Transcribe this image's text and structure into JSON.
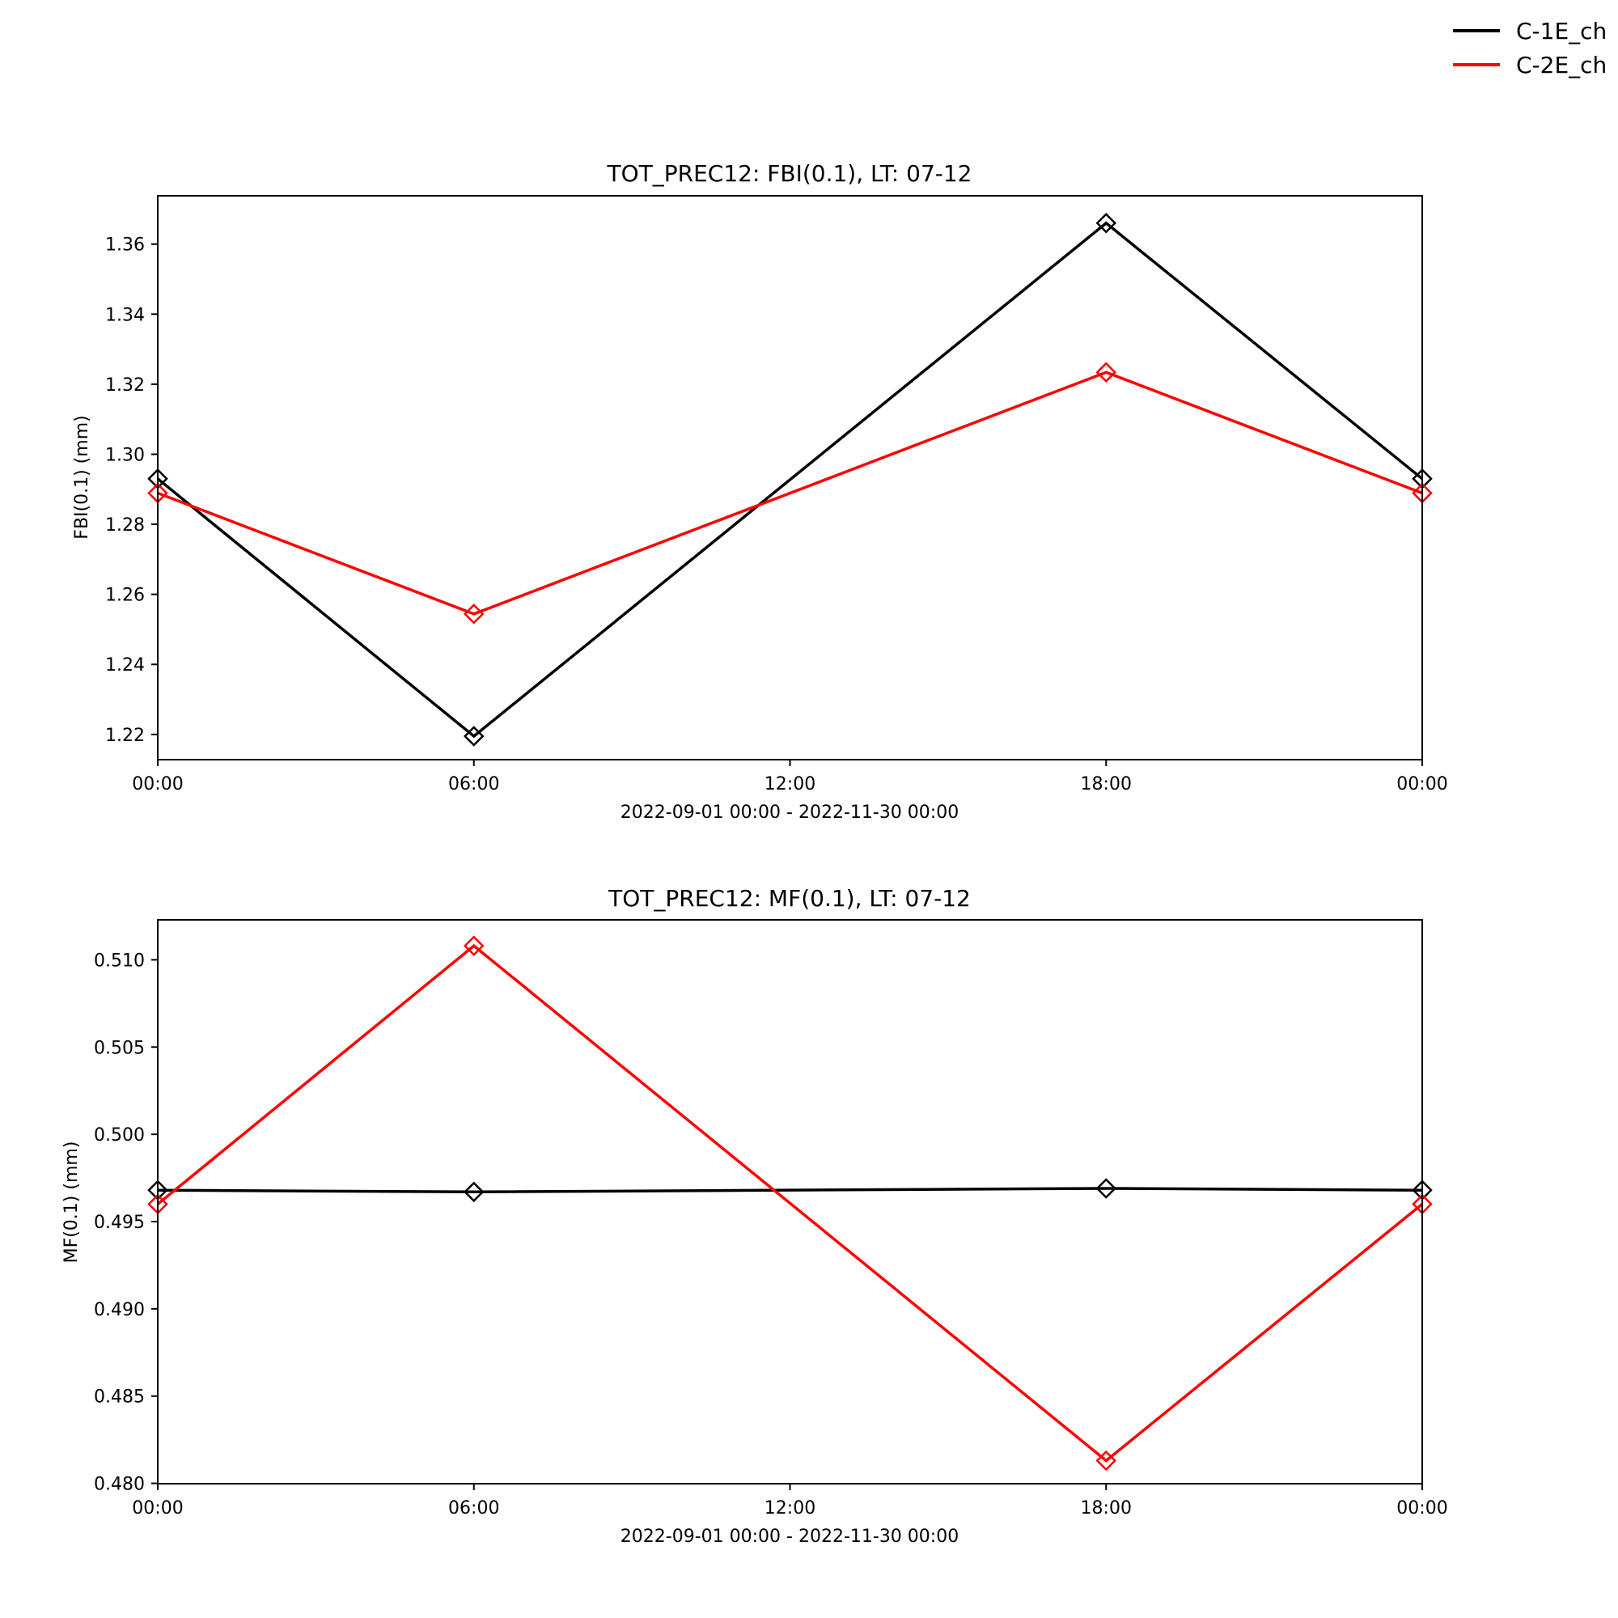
{
  "legend": {
    "placement": "top-right",
    "entries": [
      {
        "label": "C-1E_ch",
        "color": "#000000"
      },
      {
        "label": "C-2E_ch",
        "color": "#ff0000"
      }
    ]
  },
  "chart_data": [
    {
      "type": "line",
      "title": "TOT_PREC12: FBI(0.1), LT: 07-12",
      "xlabel": "2022-09-01 00:00 - 2022-11-30 00:00",
      "ylabel": "FBI(0.1) (mm)",
      "x": [
        0,
        6,
        12,
        18,
        24
      ],
      "xticks": [
        "00:00",
        "06:00",
        "12:00",
        "18:00",
        "00:00"
      ],
      "xlim": [
        0,
        24
      ],
      "ylim": [
        1.2128,
        1.3738
      ],
      "yticks": [
        1.22,
        1.24,
        1.26,
        1.28,
        1.3,
        1.32,
        1.34,
        1.36
      ],
      "ytick_labels": [
        "1.22",
        "1.24",
        "1.26",
        "1.28",
        "1.30",
        "1.32",
        "1.34",
        "1.36"
      ],
      "series": [
        {
          "name": "C-1E_ch",
          "color": "#000000",
          "x": [
            0,
            6,
            18,
            24
          ],
          "values": [
            1.293,
            1.2195,
            1.366,
            1.293
          ]
        },
        {
          "name": "C-2E_ch",
          "color": "#ff0000",
          "x": [
            0,
            6,
            18,
            24
          ],
          "values": [
            1.2889,
            1.2544,
            1.3234,
            1.2889
          ]
        }
      ],
      "grid": false
    },
    {
      "type": "line",
      "title": "TOT_PREC12: MF(0.1), LT: 07-12",
      "xlabel": "2022-09-01 00:00 - 2022-11-30 00:00",
      "ylabel": "MF(0.1) (mm)",
      "x": [
        0,
        6,
        12,
        18,
        24
      ],
      "xticks": [
        "00:00",
        "06:00",
        "12:00",
        "18:00",
        "00:00"
      ],
      "xlim": [
        0,
        24
      ],
      "ylim": [
        0.47998,
        0.51229
      ],
      "yticks": [
        0.48,
        0.485,
        0.49,
        0.495,
        0.5,
        0.505,
        0.51
      ],
      "ytick_labels": [
        "0.480",
        "0.485",
        "0.490",
        "0.495",
        "0.500",
        "0.505",
        "0.510"
      ],
      "series": [
        {
          "name": "C-1E_ch",
          "color": "#000000",
          "x": [
            0,
            6,
            18,
            24
          ],
          "values": [
            0.4968,
            0.4967,
            0.4969,
            0.4968
          ]
        },
        {
          "name": "C-2E_ch",
          "color": "#ff0000",
          "x": [
            0,
            6,
            18,
            24
          ],
          "values": [
            0.496,
            0.5108,
            0.4813,
            0.496
          ]
        }
      ],
      "grid": false
    }
  ]
}
